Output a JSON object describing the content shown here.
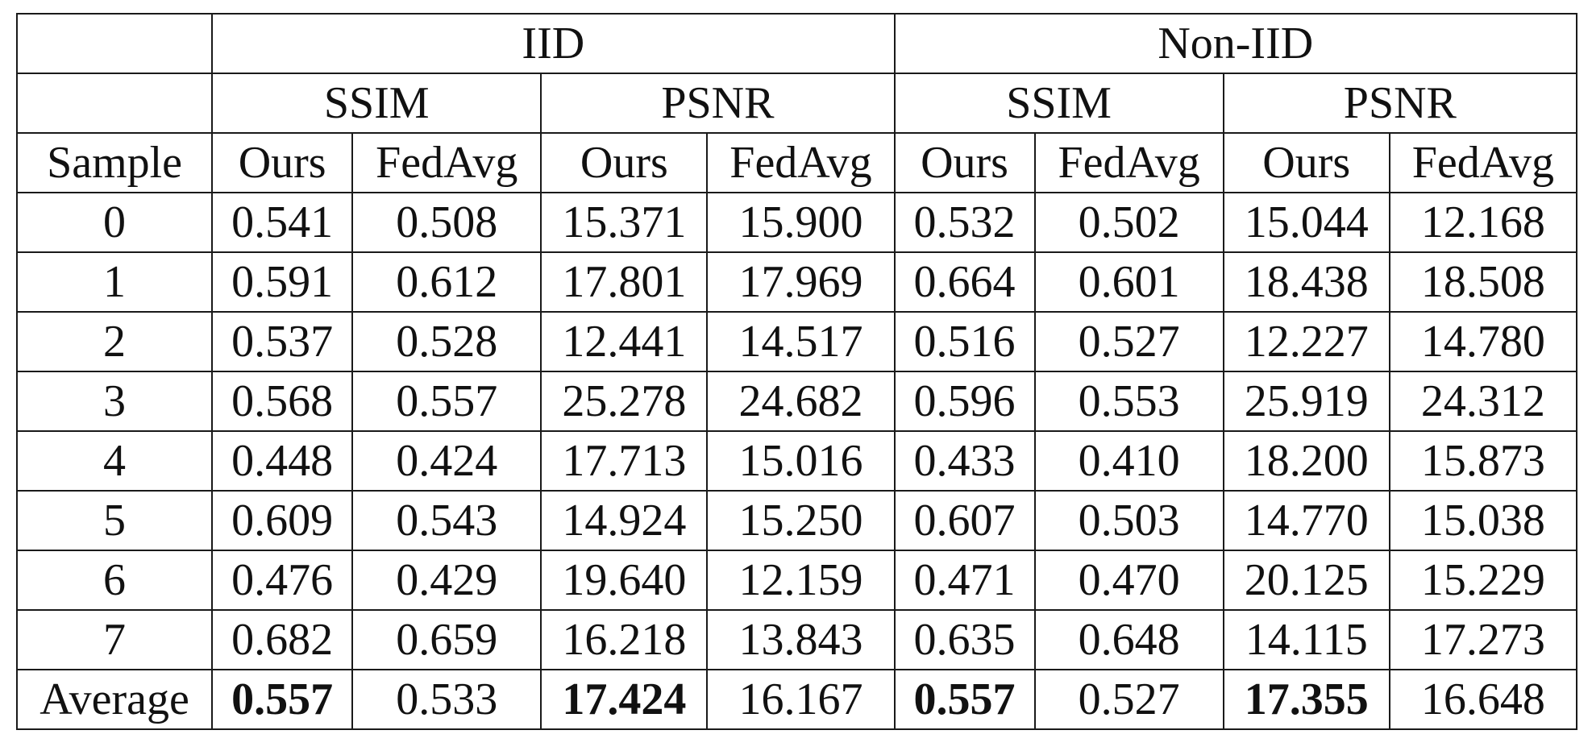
{
  "table": {
    "groups": [
      "IID",
      "Non-IID"
    ],
    "metrics": [
      "SSIM",
      "PSNR",
      "SSIM",
      "PSNR"
    ],
    "columns": [
      "Sample",
      "Ours",
      "FedAvg",
      "Ours",
      "FedAvg",
      "Ours",
      "FedAvg",
      "Ours",
      "FedAvg"
    ],
    "rows": [
      [
        "0",
        "0.541",
        "0.508",
        "15.371",
        "15.900",
        "0.532",
        "0.502",
        "15.044",
        "12.168"
      ],
      [
        "1",
        "0.591",
        "0.612",
        "17.801",
        "17.969",
        "0.664",
        "0.601",
        "18.438",
        "18.508"
      ],
      [
        "2",
        "0.537",
        "0.528",
        "12.441",
        "14.517",
        "0.516",
        "0.527",
        "12.227",
        "14.780"
      ],
      [
        "3",
        "0.568",
        "0.557",
        "25.278",
        "24.682",
        "0.596",
        "0.553",
        "25.919",
        "24.312"
      ],
      [
        "4",
        "0.448",
        "0.424",
        "17.713",
        "15.016",
        "0.433",
        "0.410",
        "18.200",
        "15.873"
      ],
      [
        "5",
        "0.609",
        "0.543",
        "14.924",
        "15.250",
        "0.607",
        "0.503",
        "14.770",
        "15.038"
      ],
      [
        "6",
        "0.476",
        "0.429",
        "19.640",
        "12.159",
        "0.471",
        "0.470",
        "20.125",
        "15.229"
      ],
      [
        "7",
        "0.682",
        "0.659",
        "16.218",
        "13.843",
        "0.635",
        "0.648",
        "14.115",
        "17.273"
      ]
    ],
    "average": [
      "Average",
      "0.557",
      "0.533",
      "17.424",
      "16.167",
      "0.557",
      "0.527",
      "17.355",
      "16.648"
    ]
  }
}
